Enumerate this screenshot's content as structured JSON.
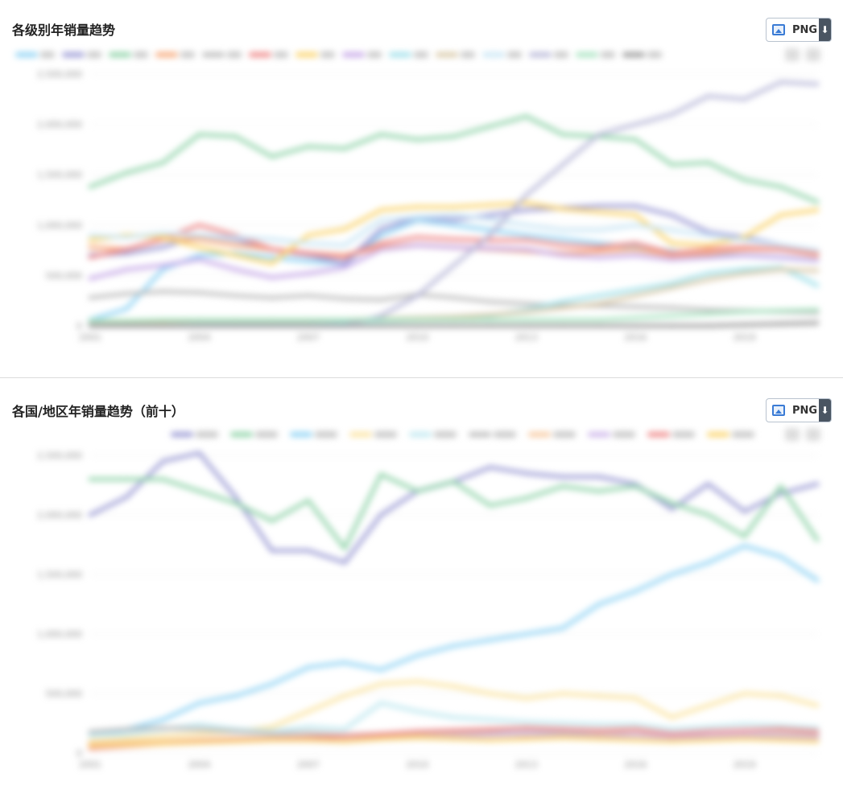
{
  "panels": [
    {
      "title": "各级别年销量趋势",
      "export_label": "PNG",
      "chart_data": {
        "type": "line",
        "title": "各级别年销量趋势",
        "x": [
          2001,
          2002,
          2003,
          2004,
          2005,
          2006,
          2007,
          2008,
          2009,
          2010,
          2011,
          2012,
          2013,
          2014,
          2015,
          2016,
          2017,
          2018,
          2019,
          2020,
          2021
        ],
        "xticks": [
          "2001",
          "2004",
          "2007",
          "2010",
          "2013",
          "2016",
          "2019"
        ],
        "yticks": [
          "0",
          "500,000",
          "1,000,000",
          "1,500,000",
          "2,000,000",
          "2,500,000"
        ],
        "ylim": [
          0,
          2500000
        ],
        "grid": true,
        "legend_position": "top",
        "series": [
          {
            "color": "#8fd3f4",
            "values": [
              60000,
              170000,
              560000,
              700000,
              720000,
              680000,
              640000,
              620000,
              900000,
              1050000,
              1000000,
              950000,
              900000,
              860000,
              820000,
              780000,
              740000,
              700000,
              700000,
              680000,
              650000
            ]
          },
          {
            "color": "#9c9bd6",
            "values": [
              700000,
              720000,
              780000,
              900000,
              860000,
              760000,
              700000,
              620000,
              960000,
              1080000,
              1050000,
              1100000,
              1150000,
              1170000,
              1190000,
              1190000,
              1100000,
              930000,
              880000,
              800000,
              730000
            ]
          },
          {
            "color": "#8fd3a8",
            "values": [
              1380000,
              1520000,
              1620000,
              1900000,
              1880000,
              1680000,
              1780000,
              1760000,
              1900000,
              1850000,
              1880000,
              1980000,
              2080000,
              1900000,
              1880000,
              1850000,
              1600000,
              1620000,
              1450000,
              1380000,
              1230000
            ]
          },
          {
            "color": "#f7a97a",
            "values": [
              780000,
              760000,
              860000,
              860000,
              800000,
              760000,
              720000,
              700000,
              780000,
              800000,
              780000,
              760000,
              740000,
              720000,
              740000,
              760000,
              700000,
              720000,
              760000,
              760000,
              700000
            ]
          },
          {
            "color": "#bbbbbb",
            "values": [
              280000,
              320000,
              340000,
              330000,
              300000,
              280000,
              300000,
              270000,
              260000,
              310000,
              280000,
              240000,
              220000,
              200000,
              200000,
              190000,
              180000,
              160000,
              150000,
              140000,
              130000
            ]
          },
          {
            "color": "#ef8a8a",
            "values": [
              680000,
              760000,
              860000,
              1000000,
              900000,
              760000,
              720000,
              680000,
              820000,
              880000,
              860000,
              850000,
              850000,
              800000,
              780000,
              820000,
              720000,
              760000,
              780000,
              760000,
              720000
            ]
          },
          {
            "color": "#fbd46d",
            "values": [
              850000,
              900000,
              880000,
              780000,
              700000,
              620000,
              900000,
              960000,
              1150000,
              1180000,
              1180000,
              1200000,
              1220000,
              1160000,
              1130000,
              1100000,
              820000,
              800000,
              880000,
              1100000,
              1150000
            ]
          },
          {
            "color": "#c7a8e8",
            "values": [
              470000,
              560000,
              600000,
              660000,
              560000,
              480000,
              520000,
              580000,
              760000,
              800000,
              780000,
              770000,
              760000,
              700000,
              680000,
              700000,
              660000,
              680000,
              700000,
              680000,
              650000
            ]
          },
          {
            "color": "#9fe0ea",
            "values": [
              20000,
              20000,
              30000,
              40000,
              40000,
              40000,
              40000,
              40000,
              50000,
              60000,
              70000,
              100000,
              160000,
              240000,
              300000,
              360000,
              420000,
              520000,
              560000,
              580000,
              400000
            ]
          },
          {
            "color": "#d9c9a8",
            "values": [
              40000,
              40000,
              40000,
              50000,
              50000,
              50000,
              50000,
              60000,
              70000,
              80000,
              90000,
              110000,
              140000,
              180000,
              220000,
              300000,
              380000,
              460000,
              520000,
              560000,
              550000
            ]
          },
          {
            "color": "#c9e6f5",
            "values": [
              900000,
              880000,
              920000,
              900000,
              880000,
              860000,
              820000,
              800000,
              1050000,
              1080000,
              1100000,
              1060000,
              1000000,
              950000,
              950000,
              1000000,
              950000,
              900000,
              850000,
              800000,
              750000
            ]
          },
          {
            "color": "#b8b8d8",
            "values": [
              0,
              0,
              0,
              0,
              0,
              0,
              0,
              0,
              100000,
              300000,
              600000,
              900000,
              1300000,
              1600000,
              1900000,
              2000000,
              2100000,
              2280000,
              2250000,
              2420000,
              2400000
            ]
          },
          {
            "color": "#a7e3c0",
            "values": [
              50000,
              50000,
              60000,
              60000,
              60000,
              60000,
              60000,
              60000,
              60000,
              60000,
              60000,
              60000,
              60000,
              60000,
              60000,
              80000,
              100000,
              120000,
              140000,
              150000,
              160000
            ]
          },
          {
            "color": "#9a9a9a",
            "values": [
              0,
              0,
              0,
              0,
              0,
              0,
              0,
              0,
              0,
              0,
              0,
              0,
              0,
              0,
              0,
              0,
              0,
              0,
              10000,
              20000,
              30000
            ]
          }
        ]
      }
    },
    {
      "title": "各国/地区年销量趋势（前十）",
      "export_label": "PNG",
      "chart_data": {
        "type": "line",
        "title": "各国/地区年销量趋势（前十）",
        "x": [
          2001,
          2002,
          2003,
          2004,
          2005,
          2006,
          2007,
          2008,
          2009,
          2010,
          2011,
          2012,
          2013,
          2014,
          2015,
          2016,
          2017,
          2018,
          2019,
          2020,
          2021
        ],
        "xticks": [
          "2001",
          "2004",
          "2007",
          "2010",
          "2013",
          "2016",
          "2019"
        ],
        "yticks": [
          "0",
          "500,000",
          "1,000,000",
          "1,500,000",
          "2,000,000",
          "2,500,000"
        ],
        "ylim": [
          0,
          2500000
        ],
        "grid": true,
        "legend_position": "top-right",
        "series": [
          {
            "color": "#9a9ad4",
            "values": [
              2000000,
              2150000,
              2450000,
              2520000,
              2150000,
              1700000,
              1700000,
              1600000,
              2000000,
              2200000,
              2280000,
              2400000,
              2350000,
              2320000,
              2320000,
              2260000,
              2050000,
              2260000,
              2030000,
              2180000,
              2260000
            ]
          },
          {
            "color": "#8fd3a8",
            "values": [
              2300000,
              2300000,
              2300000,
              2200000,
              2100000,
              1950000,
              2120000,
              1720000,
              2340000,
              2200000,
              2280000,
              2080000,
              2140000,
              2240000,
              2200000,
              2240000,
              2100000,
              2000000,
              1820000,
              2240000,
              1790000
            ]
          },
          {
            "color": "#8fd3f4",
            "values": [
              150000,
              200000,
              280000,
              420000,
              480000,
              580000,
              720000,
              760000,
              700000,
              820000,
              900000,
              950000,
              1000000,
              1050000,
              1250000,
              1360000,
              1500000,
              1600000,
              1740000,
              1650000,
              1450000
            ]
          },
          {
            "color": "#fbe3a0",
            "values": [
              100000,
              120000,
              140000,
              160000,
              180000,
              220000,
              350000,
              480000,
              580000,
              600000,
              560000,
              500000,
              460000,
              500000,
              480000,
              460000,
              300000,
              400000,
              500000,
              480000,
              400000
            ]
          },
          {
            "color": "#bfe8f0",
            "values": [
              150000,
              160000,
              200000,
              240000,
              200000,
              180000,
              220000,
              200000,
              420000,
              350000,
              300000,
              280000,
              260000,
              250000,
              240000,
              240000,
              200000,
              220000,
              240000,
              230000,
              210000
            ]
          },
          {
            "color": "#bbbbbb",
            "values": [
              180000,
              200000,
              210000,
              200000,
              180000,
              160000,
              170000,
              150000,
              160000,
              170000,
              180000,
              190000,
              200000,
              180000,
              170000,
              160000,
              150000,
              140000,
              150000,
              160000,
              150000
            ]
          },
          {
            "color": "#f7c9a0",
            "values": [
              80000,
              90000,
              100000,
              110000,
              120000,
              120000,
              110000,
              100000,
              130000,
              140000,
              150000,
              160000,
              150000,
              140000,
              150000,
              160000,
              140000,
              130000,
              140000,
              150000,
              140000
            ]
          },
          {
            "color": "#cdb6ea",
            "values": [
              60000,
              70000,
              80000,
              90000,
              100000,
              110000,
              110000,
              100000,
              120000,
              130000,
              140000,
              150000,
              160000,
              150000,
              140000,
              150000,
              130000,
              140000,
              150000,
              140000,
              130000
            ]
          },
          {
            "color": "#ef8a8a",
            "values": [
              40000,
              60000,
              80000,
              100000,
              110000,
              120000,
              130000,
              140000,
              160000,
              180000,
              190000,
              200000,
              210000,
              200000,
              190000,
              200000,
              160000,
              180000,
              190000,
              200000,
              180000
            ]
          },
          {
            "color": "#fbd46d",
            "values": [
              60000,
              70000,
              80000,
              90000,
              100000,
              110000,
              110000,
              100000,
              120000,
              130000,
              120000,
              110000,
              120000,
              130000,
              120000,
              110000,
              100000,
              110000,
              120000,
              110000,
              100000
            ]
          }
        ]
      }
    }
  ]
}
